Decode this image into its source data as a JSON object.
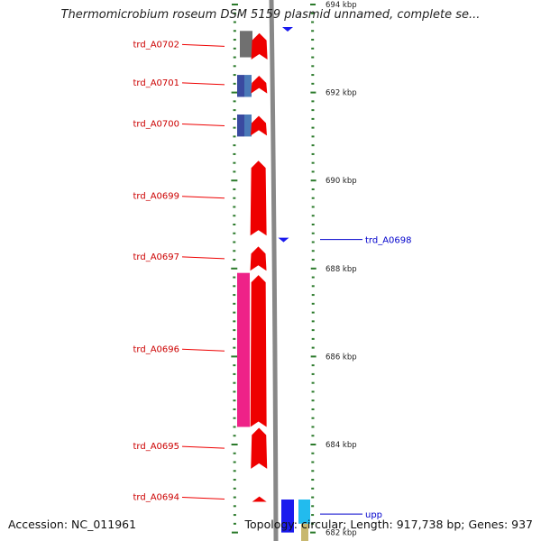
{
  "title": "Thermomicrobium roseum DSM 5159 plasmid unnamed, complete se...",
  "accession": "Accession: NC_011961",
  "summary": "Topology: circular; Length: 917,738 bp; Genes: 937",
  "colors": {
    "forward_gene": "#ee0000",
    "reverse_label": "#0000cc",
    "backbone": "#888888",
    "tick": "#2b7a2b",
    "pink_feature": "#ee2288",
    "gray_feature": "#707070",
    "blue_feature": "#1a1aee",
    "cyan_feature": "#22bbee",
    "navy_feature": "#3a4aa0"
  },
  "scale_labels": [
    {
      "label": "694 kbp",
      "kbp": 694
    },
    {
      "label": "692 kbp",
      "kbp": 692
    },
    {
      "label": "690 kbp",
      "kbp": 690
    },
    {
      "label": "688 kbp",
      "kbp": 688
    },
    {
      "label": "686 kbp",
      "kbp": 686
    },
    {
      "label": "684 kbp",
      "kbp": 684
    },
    {
      "label": "682 kbp",
      "kbp": 682
    }
  ],
  "genes": [
    {
      "label": "trd_A0702",
      "strand": "+",
      "start_kbp": 693.35,
      "end_kbp": 692.75
    },
    {
      "label": "trd_A0701",
      "strand": "+",
      "start_kbp": 692.38,
      "end_kbp": 691.98
    },
    {
      "label": "trd_A0700",
      "strand": "+",
      "start_kbp": 691.47,
      "end_kbp": 691.02
    },
    {
      "label": "trd_A0699",
      "strand": "+",
      "start_kbp": 690.45,
      "end_kbp": 688.75
    },
    {
      "label": "trd_A0698",
      "strand": "-",
      "start_kbp": 688.7,
      "end_kbp": 688.62
    },
    {
      "label": "trd_A0697",
      "strand": "+",
      "start_kbp": 688.5,
      "end_kbp": 687.95
    },
    {
      "label": "trd_A0696",
      "strand": "+",
      "start_kbp": 687.85,
      "end_kbp": 684.4
    },
    {
      "label": "trd_A0695",
      "strand": "+",
      "start_kbp": 684.38,
      "end_kbp": 683.45
    },
    {
      "label": "trd_A0694",
      "strand": "+",
      "start_kbp": 682.82,
      "end_kbp": 682.7
    },
    {
      "label": "upp",
      "strand": "-",
      "start_kbp": 682.74,
      "end_kbp": 682.1
    }
  ]
}
